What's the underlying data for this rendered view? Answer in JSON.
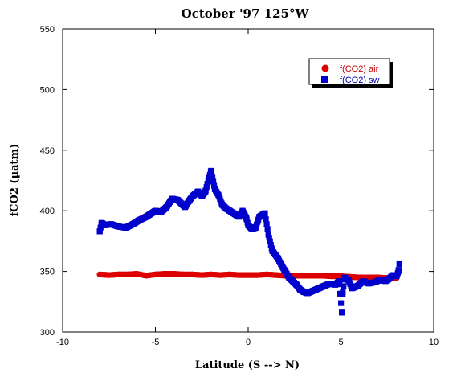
{
  "chart_data": {
    "type": "scatter",
    "title": "October '97 125°W",
    "xlabel": "Latitude (S --> N)",
    "ylabel": "fCO2 (µatm)",
    "xlim": [
      -10,
      10
    ],
    "ylim": [
      300,
      550
    ],
    "x_ticks": [
      "-10",
      "-5",
      "0",
      "5",
      "10"
    ],
    "x_tick_values": [
      -10,
      -5,
      0,
      5,
      10
    ],
    "y_ticks": [
      "300",
      "350",
      "400",
      "450",
      "500",
      "550"
    ],
    "y_tick_values": [
      300,
      350,
      400,
      450,
      500,
      550
    ],
    "grid": false,
    "legend_position": "top-right",
    "series": [
      {
        "name": "f(CO2) air",
        "color": "#dd0000",
        "marker": "circle",
        "x": [
          -8.0,
          -7.5,
          -7.0,
          -6.5,
          -6.0,
          -5.5,
          -5.0,
          -4.5,
          -4.0,
          -3.5,
          -3.0,
          -2.5,
          -2.0,
          -1.5,
          -1.0,
          -0.5,
          0.0,
          0.5,
          1.0,
          1.5,
          2.0,
          2.5,
          3.0,
          3.5,
          4.0,
          4.5,
          5.0,
          5.5,
          6.0,
          6.5,
          7.0,
          7.5,
          8.0
        ],
        "y": [
          347.5,
          347,
          347.5,
          347.5,
          348,
          346.5,
          347.5,
          348,
          348,
          347.5,
          347.5,
          347,
          347.5,
          347,
          347.5,
          347,
          347,
          347,
          347.5,
          347,
          346.5,
          346.5,
          346.5,
          346.5,
          346.5,
          346,
          346,
          345.5,
          345,
          345,
          345,
          344.5,
          344.5
        ]
      },
      {
        "name": "f(CO2) sw",
        "color": "#0000cc",
        "marker": "square",
        "x": [
          -8.0,
          -7.9,
          -7.7,
          -7.4,
          -7.0,
          -6.6,
          -6.2,
          -5.9,
          -5.5,
          -5.0,
          -4.7,
          -4.4,
          -4.1,
          -3.8,
          -3.4,
          -3.2,
          -3.0,
          -2.7,
          -2.5,
          -2.3,
          -2.2,
          -2.0,
          -1.8,
          -1.6,
          -1.4,
          -1.2,
          -1.0,
          -0.8,
          -0.5,
          -0.3,
          -0.1,
          0.0,
          0.2,
          0.4,
          0.6,
          0.9,
          1.1,
          1.3,
          1.6,
          1.8,
          2.0,
          2.2,
          2.4,
          2.6,
          2.8,
          3.0,
          3.2,
          3.5,
          3.8,
          4.1,
          4.4,
          4.7,
          4.9,
          5.05,
          5.1,
          5.2,
          5.4,
          5.6,
          5.9,
          6.2,
          6.5,
          6.8,
          7.1,
          7.4,
          7.6,
          7.8,
          8.0,
          8.1,
          8.15
        ],
        "y": [
          383,
          390,
          388,
          389,
          387,
          386,
          389,
          392,
          395,
          400,
          399,
          403,
          410,
          409,
          403,
          408,
          412,
          416,
          412,
          416,
          422,
          433,
          418,
          413,
          405,
          402,
          400,
          398,
          395,
          400,
          394,
          388,
          385,
          386,
          395,
          398,
          380,
          367,
          361,
          355,
          350,
          345,
          342,
          339,
          335,
          333,
          332,
          334,
          336,
          338,
          340,
          339,
          342,
          316,
          333,
          345,
          343,
          336,
          338,
          342,
          340,
          341,
          343,
          342,
          344,
          347,
          346,
          350,
          356
        ]
      }
    ]
  }
}
